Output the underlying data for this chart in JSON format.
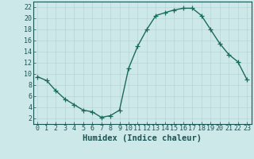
{
  "x": [
    0,
    1,
    2,
    3,
    4,
    5,
    6,
    7,
    8,
    9,
    10,
    11,
    12,
    13,
    14,
    15,
    16,
    17,
    18,
    19,
    20,
    21,
    22,
    23
  ],
  "y": [
    9.5,
    8.8,
    7.0,
    5.5,
    4.5,
    3.5,
    3.2,
    2.2,
    2.5,
    3.5,
    11.0,
    15.0,
    18.0,
    20.5,
    21.0,
    21.5,
    21.8,
    21.8,
    20.5,
    18.0,
    15.5,
    13.5,
    12.2,
    9.0
  ],
  "line_color": "#1a6b5a",
  "marker": "+",
  "marker_size": 4,
  "bg_color": "#cde8e8",
  "grid_color": "#b8d4d4",
  "xlabel": "Humidex (Indice chaleur)",
  "xlim": [
    -0.5,
    23.5
  ],
  "ylim": [
    1,
    23
  ],
  "yticks": [
    2,
    4,
    6,
    8,
    10,
    12,
    14,
    16,
    18,
    20,
    22
  ],
  "xticks": [
    0,
    1,
    2,
    3,
    4,
    5,
    6,
    7,
    8,
    9,
    10,
    11,
    12,
    13,
    14,
    15,
    16,
    17,
    18,
    19,
    20,
    21,
    22,
    23
  ],
  "tick_color": "#1a5555",
  "label_fontsize": 7.5,
  "tick_fontsize": 6,
  "line_width": 1.0
}
